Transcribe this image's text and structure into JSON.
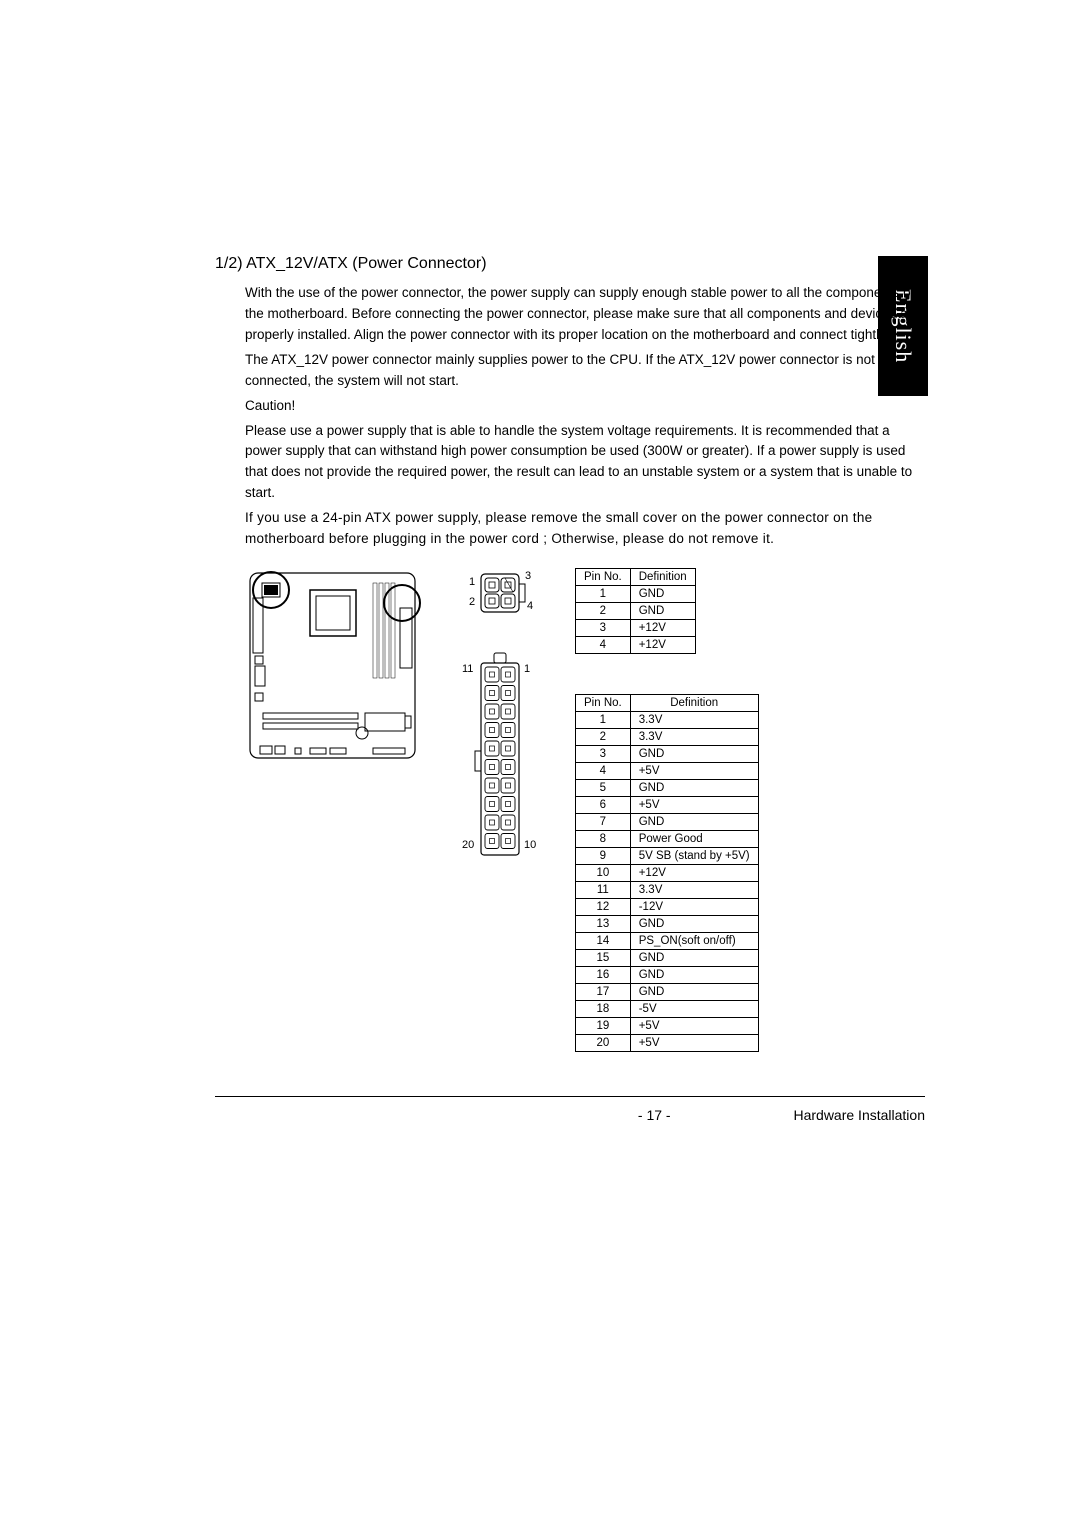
{
  "side_tab": "English",
  "section": {
    "heading": "1/2)  ATX_12V/ATX (Power Connector)",
    "para1": "With the use of the power connector, the power supply can supply enough stable power to all the components on the motherboard. Before connecting the power connector, please make sure that all components and devices are properly installed.  Align the power connector with its proper location on the motherboard and connect tightly.",
    "para2": "The ATX_12V power connector mainly supplies power to the CPU. If the ATX_12V power connector is not connected, the system will not start.",
    "caution_label": "Caution!",
    "para3": "Please use a power supply that is able to handle the system voltage requirements.  It is recommended that a power supply that can withstand high power consumption be used (300W or greater).  If a power supply is used that does not provide the required power, the result can lead to an unstable system or a system that is unable to start.",
    "para4": "If you use a 24-pin ATX power supply, please remove the small cover on the power connector on the motherboard before plugging in the power cord ; Otherwise, please do not remove it."
  },
  "connector_4pin": {
    "labels": {
      "tl": "1",
      "bl": "2",
      "tr": "3",
      "br": "4"
    }
  },
  "connector_20pin": {
    "labels": {
      "tl": "11",
      "tr": "1",
      "bl": "20",
      "br": "10"
    }
  },
  "table1": {
    "headers": [
      "Pin No.",
      "Definition"
    ],
    "rows": [
      [
        "1",
        "GND"
      ],
      [
        "2",
        "GND"
      ],
      [
        "3",
        "+12V"
      ],
      [
        "4",
        "+12V"
      ]
    ]
  },
  "table2": {
    "headers": [
      "Pin No.",
      "Definition"
    ],
    "rows": [
      [
        "1",
        "3.3V"
      ],
      [
        "2",
        "3.3V"
      ],
      [
        "3",
        "GND"
      ],
      [
        "4",
        "+5V"
      ],
      [
        "5",
        "GND"
      ],
      [
        "6",
        "+5V"
      ],
      [
        "7",
        "GND"
      ],
      [
        "8",
        "Power Good"
      ],
      [
        "9",
        "5V SB (stand by +5V)"
      ],
      [
        "10",
        "+12V"
      ],
      [
        "11",
        "3.3V"
      ],
      [
        "12",
        "-12V"
      ],
      [
        "13",
        "GND"
      ],
      [
        "14",
        "PS_ON(soft on/off)"
      ],
      [
        "15",
        "GND"
      ],
      [
        "16",
        "GND"
      ],
      [
        "17",
        "GND"
      ],
      [
        "18",
        "-5V"
      ],
      [
        "19",
        "+5V"
      ],
      [
        "20",
        "+5V"
      ]
    ]
  },
  "footer": {
    "page": "- 17 -",
    "title": "Hardware Installation"
  }
}
